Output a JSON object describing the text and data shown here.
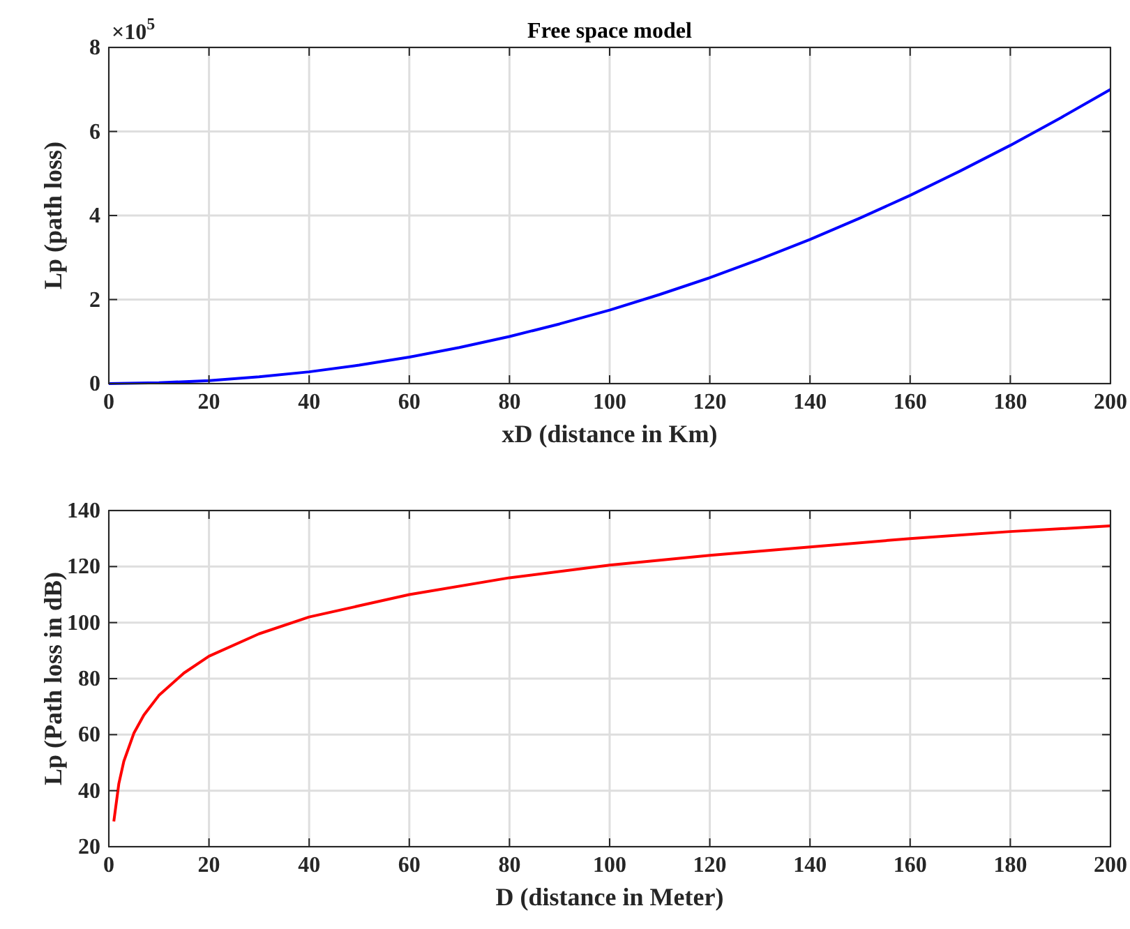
{
  "chart_data": [
    {
      "type": "line",
      "title": "Free space model",
      "xlabel": "xD (distance in Km)",
      "ylabel": "Lp (path loss)",
      "x": [
        0,
        10,
        20,
        30,
        40,
        50,
        60,
        70,
        80,
        90,
        100,
        110,
        120,
        130,
        140,
        150,
        160,
        170,
        180,
        190,
        200
      ],
      "series": [
        {
          "color": "#0000ff",
          "values": [
            0,
            0.02,
            0.07,
            0.16,
            0.28,
            0.44,
            0.63,
            0.86,
            1.12,
            1.42,
            1.75,
            2.12,
            2.52,
            2.96,
            3.43,
            3.94,
            4.48,
            5.06,
            5.67,
            6.32,
            7.0
          ]
        }
      ],
      "xlim": [
        0,
        200
      ],
      "xticks": [
        0,
        20,
        40,
        60,
        80,
        100,
        120,
        140,
        160,
        180,
        200
      ],
      "ylim": [
        0,
        8
      ],
      "yticks": [
        0,
        2,
        4,
        6,
        8
      ],
      "grid": true,
      "annotations": [
        "×10$^{5}$"
      ]
    },
    {
      "type": "line",
      "xlabel": "D (distance in Meter)",
      "ylabel": "Lp (Path loss in dB)",
      "x": [
        1,
        2,
        3,
        5,
        7,
        10,
        15,
        20,
        30,
        40,
        50,
        60,
        80,
        100,
        120,
        140,
        160,
        180,
        200
      ],
      "series": [
        {
          "color": "#ff0000",
          "values": [
            29,
            42.5,
            50.5,
            60.5,
            67,
            74,
            82,
            88,
            96,
            102,
            106,
            110,
            116,
            120.5,
            124,
            127,
            130,
            132.5,
            134.5
          ]
        }
      ],
      "xlim": [
        0,
        200
      ],
      "xticks": [
        0,
        20,
        40,
        60,
        80,
        100,
        120,
        140,
        160,
        180,
        200
      ],
      "ylim": [
        20,
        140
      ],
      "yticks": [
        20,
        40,
        60,
        80,
        100,
        120,
        140
      ],
      "grid": true
    }
  ]
}
